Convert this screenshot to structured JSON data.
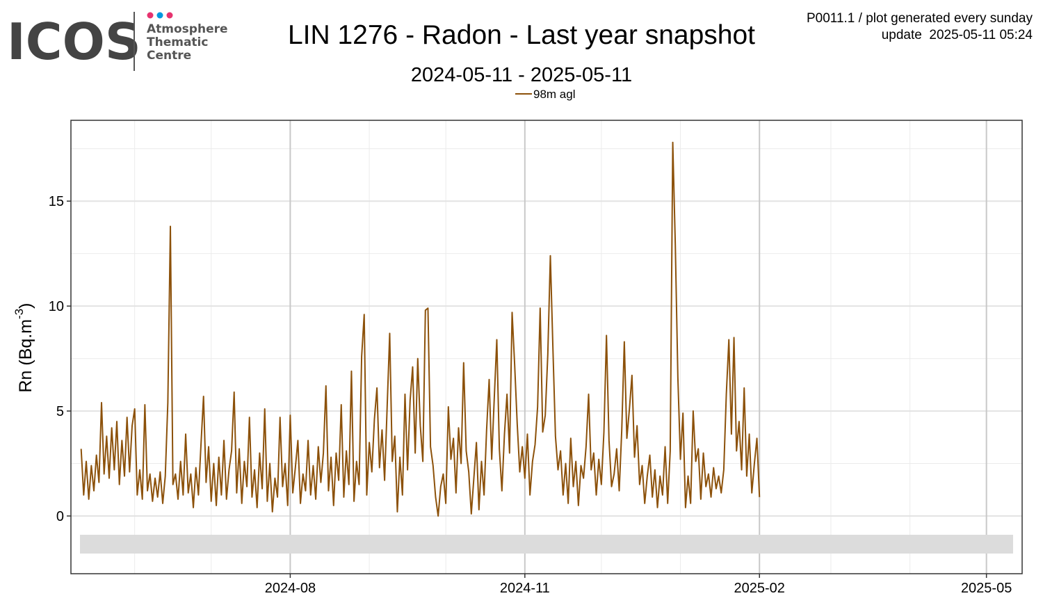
{
  "logo": {
    "name": "ICOS",
    "lines": [
      "Atmosphere",
      "Thematic",
      "Centre"
    ]
  },
  "header": {
    "code_note": "P0011.1 / plot generated every sunday",
    "update_note": "update  2025-05-11 05:24"
  },
  "chart_data": {
    "type": "line",
    "title": "LIN 1276 - Radon - Last year snapshot",
    "subtitle": "2024-05-11 - 2025-05-11",
    "ylabel": [
      "Rn (Bq.m",
      "-3",
      ")"
    ],
    "xlim": [
      "2024-05-07",
      "2025-05-15"
    ],
    "xticks": [
      "2024-08",
      "2024-11",
      "2025-02",
      "2025-05"
    ],
    "x_minor_ticks": [
      "2024-06",
      "2024-07",
      "2024-09",
      "2024-10",
      "2024-12",
      "2025-01",
      "2025-03",
      "2025-04"
    ],
    "ylim": [
      -2.75,
      18.85
    ],
    "yticks": [
      0,
      5,
      10,
      15
    ],
    "y_minor_ticks": [
      2.5,
      7.5,
      12.5,
      17.5
    ],
    "grid": true,
    "legend": "top",
    "x": [
      "2024-05-11",
      "2024-05-12",
      "2024-05-13",
      "2024-05-14",
      "2024-05-15",
      "2024-05-16",
      "2024-05-17",
      "2024-05-18",
      "2024-05-19",
      "2024-05-20",
      "2024-05-21",
      "2024-05-22",
      "2024-05-23",
      "2024-05-24",
      "2024-05-25",
      "2024-05-26",
      "2024-05-27",
      "2024-05-28",
      "2024-05-29",
      "2024-05-30",
      "2024-05-31",
      "2024-06-01",
      "2024-06-02",
      "2024-06-03",
      "2024-06-04",
      "2024-06-05",
      "2024-06-06",
      "2024-06-07",
      "2024-06-08",
      "2024-06-09",
      "2024-06-10",
      "2024-06-11",
      "2024-06-12",
      "2024-06-13",
      "2024-06-14",
      "2024-06-15",
      "2024-06-16",
      "2024-06-17",
      "2024-06-18",
      "2024-06-19",
      "2024-06-20",
      "2024-06-21",
      "2024-06-22",
      "2024-06-23",
      "2024-06-24",
      "2024-06-25",
      "2024-06-26",
      "2024-06-27",
      "2024-06-28",
      "2024-06-29",
      "2024-06-30",
      "2024-07-01",
      "2024-07-02",
      "2024-07-03",
      "2024-07-04",
      "2024-07-05",
      "2024-07-06",
      "2024-07-07",
      "2024-07-08",
      "2024-07-09",
      "2024-07-10",
      "2024-07-11",
      "2024-07-12",
      "2024-07-13",
      "2024-07-14",
      "2024-07-15",
      "2024-07-16",
      "2024-07-17",
      "2024-07-18",
      "2024-07-19",
      "2024-07-20",
      "2024-07-21",
      "2024-07-22",
      "2024-07-23",
      "2024-07-24",
      "2024-07-25",
      "2024-07-26",
      "2024-07-27",
      "2024-07-28",
      "2024-07-29",
      "2024-07-30",
      "2024-07-31",
      "2024-08-01",
      "2024-08-02",
      "2024-08-03",
      "2024-08-04",
      "2024-08-05",
      "2024-08-06",
      "2024-08-07",
      "2024-08-08",
      "2024-08-09",
      "2024-08-10",
      "2024-08-11",
      "2024-08-12",
      "2024-08-13",
      "2024-08-14",
      "2024-08-15",
      "2024-08-16",
      "2024-08-17",
      "2024-08-18",
      "2024-08-19",
      "2024-08-20",
      "2024-08-21",
      "2024-08-22",
      "2024-08-23",
      "2024-08-24",
      "2024-08-25",
      "2024-08-26",
      "2024-08-27",
      "2024-08-28",
      "2024-08-29",
      "2024-08-30",
      "2024-08-31",
      "2024-09-01",
      "2024-09-02",
      "2024-09-03",
      "2024-09-04",
      "2024-09-05",
      "2024-09-06",
      "2024-09-07",
      "2024-09-08",
      "2024-09-09",
      "2024-09-10",
      "2024-09-11",
      "2024-09-12",
      "2024-09-13",
      "2024-09-14",
      "2024-09-15",
      "2024-09-16",
      "2024-09-17",
      "2024-09-18",
      "2024-09-19",
      "2024-09-20",
      "2024-09-21",
      "2024-09-22",
      "2024-09-23",
      "2024-09-24",
      "2024-09-25",
      "2024-09-26",
      "2024-09-27",
      "2024-09-28",
      "2024-09-29",
      "2024-09-30",
      "2024-10-01",
      "2024-10-02",
      "2024-10-03",
      "2024-10-04",
      "2024-10-05",
      "2024-10-06",
      "2024-10-07",
      "2024-10-08",
      "2024-10-09",
      "2024-10-10",
      "2024-10-11",
      "2024-10-12",
      "2024-10-13",
      "2024-10-14",
      "2024-10-15",
      "2024-10-16",
      "2024-10-17",
      "2024-10-18",
      "2024-10-19",
      "2024-10-20",
      "2024-10-21",
      "2024-10-22",
      "2024-10-23",
      "2024-10-24",
      "2024-10-25",
      "2024-10-26",
      "2024-10-27",
      "2024-10-28",
      "2024-10-29",
      "2024-10-30",
      "2024-10-31",
      "2024-11-01",
      "2024-11-02",
      "2024-11-03",
      "2024-11-04",
      "2024-11-05",
      "2024-11-06",
      "2024-11-07",
      "2024-11-08",
      "2024-11-09",
      "2024-11-10",
      "2024-11-11",
      "2024-11-12",
      "2024-11-13",
      "2024-11-14",
      "2024-11-15",
      "2024-11-16",
      "2024-11-17",
      "2024-11-18",
      "2024-11-19",
      "2024-11-20",
      "2024-11-21",
      "2024-11-22",
      "2024-11-23",
      "2024-11-24",
      "2024-11-25",
      "2024-11-26",
      "2024-11-27",
      "2024-11-28",
      "2024-11-29",
      "2024-11-30",
      "2024-12-01",
      "2024-12-02",
      "2024-12-03",
      "2024-12-04",
      "2024-12-05",
      "2024-12-06",
      "2024-12-07",
      "2024-12-08",
      "2024-12-09",
      "2024-12-10",
      "2024-12-11",
      "2024-12-12",
      "2024-12-13",
      "2024-12-14",
      "2024-12-15",
      "2024-12-16",
      "2024-12-17",
      "2024-12-18",
      "2024-12-19",
      "2024-12-20",
      "2024-12-21",
      "2024-12-22",
      "2024-12-23",
      "2024-12-24",
      "2024-12-25",
      "2024-12-26",
      "2024-12-27",
      "2024-12-28",
      "2024-12-29",
      "2024-12-30",
      "2024-12-31",
      "2025-01-01",
      "2025-01-02",
      "2025-01-03",
      "2025-01-04",
      "2025-01-05",
      "2025-01-06",
      "2025-01-07",
      "2025-01-08",
      "2025-01-09",
      "2025-01-10",
      "2025-01-11",
      "2025-01-12",
      "2025-01-13",
      "2025-01-14",
      "2025-01-15",
      "2025-01-16",
      "2025-01-17",
      "2025-01-18",
      "2025-01-19",
      "2025-01-20",
      "2025-01-21",
      "2025-01-22",
      "2025-01-23",
      "2025-01-24",
      "2025-01-25",
      "2025-01-26",
      "2025-01-27",
      "2025-01-28",
      "2025-01-29",
      "2025-01-30",
      "2025-01-31",
      "2025-02-01"
    ],
    "series": [
      {
        "name": "98m agl",
        "color": "#8c510a",
        "values": [
          3.2,
          1.0,
          2.6,
          0.8,
          2.4,
          1.2,
          2.9,
          1.6,
          5.4,
          2.0,
          3.8,
          1.8,
          4.2,
          2.2,
          4.5,
          1.5,
          3.6,
          1.9,
          4.7,
          2.1,
          4.3,
          5.1,
          1.0,
          2.2,
          0.8,
          5.3,
          1.2,
          2.0,
          0.7,
          1.8,
          0.9,
          2.1,
          0.6,
          1.9,
          5.4,
          13.8,
          1.5,
          2.0,
          0.8,
          2.6,
          1.0,
          3.9,
          1.1,
          2.0,
          0.4,
          2.3,
          1.0,
          3.4,
          5.7,
          1.6,
          3.3,
          0.7,
          2.5,
          0.5,
          2.8,
          1.0,
          3.6,
          0.8,
          2.2,
          3.1,
          5.9,
          1.1,
          3.2,
          0.6,
          2.6,
          1.4,
          4.7,
          0.9,
          2.2,
          0.4,
          3.0,
          1.3,
          5.1,
          0.7,
          2.5,
          0.2,
          1.8,
          0.9,
          4.7,
          1.4,
          2.5,
          0.5,
          4.8,
          1.1,
          2.3,
          3.6,
          0.6,
          2.0,
          1.2,
          3.6,
          1.0,
          2.4,
          0.8,
          3.3,
          1.6,
          3.0,
          6.2,
          1.2,
          2.8,
          0.5,
          3.0,
          1.7,
          5.3,
          0.9,
          3.1,
          1.5,
          6.9,
          0.7,
          2.6,
          1.5,
          7.6,
          9.6,
          1.0,
          3.5,
          2.1,
          4.6,
          6.1,
          2.3,
          4.1,
          1.7,
          5.2,
          8.7,
          2.6,
          3.8,
          0.2,
          2.8,
          1.0,
          5.8,
          2.2,
          5.5,
          7.1,
          3.0,
          7.5,
          4.3,
          2.6,
          9.8,
          9.9,
          3.3,
          2.4,
          0.9,
          0.0,
          1.4,
          2.0,
          0.6,
          5.2,
          2.7,
          3.7,
          1.1,
          4.2,
          2.5,
          7.3,
          3.1,
          2.1,
          0.1,
          1.8,
          3.5,
          0.3,
          2.6,
          1.0,
          4.1,
          6.5,
          2.7,
          5.6,
          8.4,
          3.2,
          1.2,
          3.9,
          5.8,
          3.0,
          9.7,
          7.2,
          4.4,
          2.1,
          3.3,
          1.8,
          3.9,
          1.0,
          2.6,
          3.4,
          5.2,
          9.9,
          4.0,
          4.8,
          7.7,
          12.4,
          8.0,
          3.8,
          2.2,
          3.1,
          1.0,
          2.5,
          0.6,
          3.7,
          1.4,
          2.6,
          0.5,
          2.4,
          1.8,
          3.3,
          5.8,
          2.2,
          3.0,
          1.0,
          2.7,
          1.5,
          4.0,
          8.6,
          3.6,
          1.4,
          2.0,
          3.2,
          1.2,
          4.1,
          8.3,
          3.7,
          5.1,
          6.7,
          2.8,
          4.3,
          1.5,
          2.4,
          0.6,
          1.9,
          2.9,
          0.9,
          2.2,
          0.4,
          1.9,
          1.0,
          3.3,
          0.6,
          3.1,
          17.8,
          12.9,
          6.6,
          2.7,
          4.9,
          0.4,
          1.9,
          0.6,
          5.0,
          2.6,
          3.2,
          0.8,
          3.0,
          1.4,
          2.0,
          0.9,
          2.3,
          1.3,
          1.9,
          1.1,
          2.2,
          5.8,
          8.4,
          3.9,
          8.5,
          3.1,
          4.5,
          2.2,
          6.1,
          1.9,
          3.9,
          1.1,
          2.5,
          3.7,
          0.9
        ]
      }
    ]
  }
}
